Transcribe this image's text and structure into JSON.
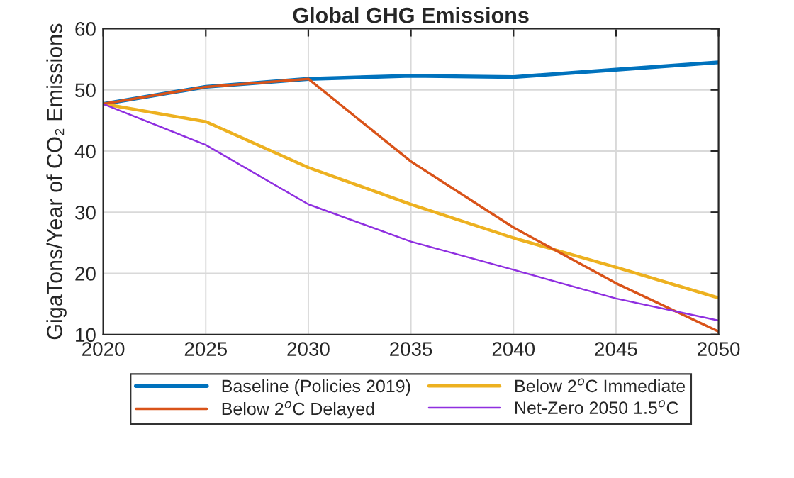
{
  "chart_data": {
    "type": "line",
    "title": "Global GHG Emissions",
    "ylabel": "GigaTons/Year of CO₂ Emissions",
    "x": [
      2020,
      2025,
      2030,
      2035,
      2040,
      2045,
      2050
    ],
    "series": [
      {
        "name": "Baseline (Policies 2019)",
        "color": "#0072bd",
        "values": [
          47.7,
          50.5,
          51.8,
          52.3,
          52.1,
          53.3,
          54.5
        ]
      },
      {
        "name": "Below 2$^{o}$C Immediate",
        "color": "#edb120",
        "values": [
          47.7,
          44.8,
          37.3,
          31.3,
          25.8,
          21.0,
          16.0
        ]
      },
      {
        "name": "Below 2$^{o}$C Delayed",
        "color": "#d95319",
        "values": [
          47.7,
          50.5,
          51.8,
          38.3,
          27.5,
          18.4,
          10.5
        ]
      },
      {
        "name": "Net-Zero 2050 1.5$^{o}$C",
        "color": "#8f2fe0",
        "values": [
          47.7,
          41.0,
          31.3,
          25.2,
          20.6,
          15.9,
          12.3
        ]
      }
    ],
    "xlim": [
      2020,
      2050
    ],
    "xticks": [
      2020,
      2025,
      2030,
      2035,
      2040,
      2045,
      2050
    ],
    "ylim": [
      10,
      60
    ],
    "yticks": [
      10,
      20,
      30,
      40,
      50,
      60
    ],
    "grid": true,
    "legend": "bottom",
    "marker": "none",
    "line_style": "solid"
  }
}
